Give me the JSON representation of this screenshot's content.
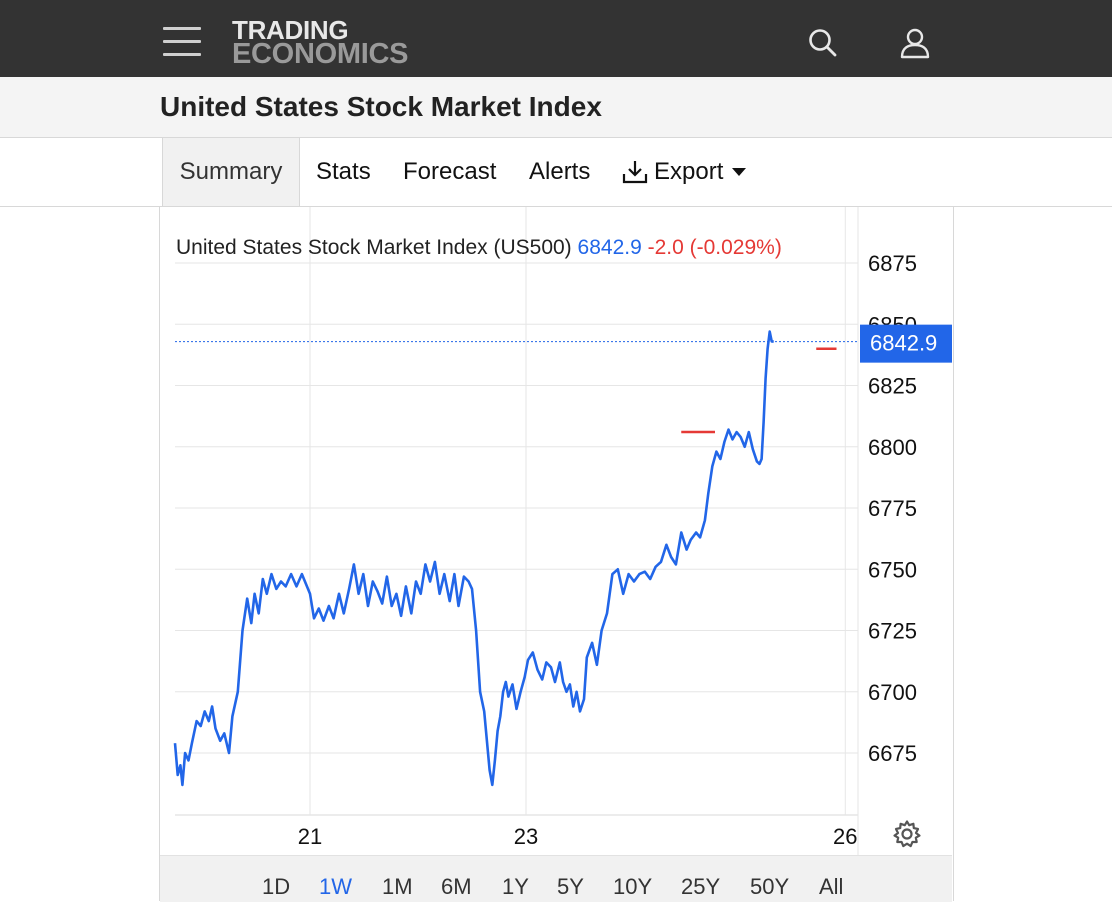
{
  "header": {
    "brand_line1": "TRADING",
    "brand_line2": "ECONOMICS",
    "icons": {
      "menu": "hamburger-menu-icon",
      "search": "search-icon",
      "user": "user-icon"
    }
  },
  "page": {
    "title": "United States Stock Market Index"
  },
  "tabs": [
    {
      "label": "Summary",
      "active": true
    },
    {
      "label": "Stats"
    },
    {
      "label": "Forecast"
    },
    {
      "label": "Alerts"
    },
    {
      "label": "Export",
      "icon": "download-icon",
      "dropdown": true
    }
  ],
  "quote": {
    "name": "United States Stock Market Index (US500)",
    "price": "6842.9",
    "change": "-2.0 (-0.029%)"
  },
  "price_tag": "6842.9",
  "colors": {
    "line": "#2266e8",
    "negative": "#e53935",
    "tag_bg": "#2266e8",
    "topbar": "#333333"
  },
  "chart_data": {
    "type": "line",
    "title": "United States Stock Market Index (US500)",
    "xlabel": "",
    "ylabel": "",
    "x_ticks": [
      {
        "label": "21",
        "t": 0.2
      },
      {
        "label": "23",
        "t": 0.52
      },
      {
        "label": "26",
        "t": 0.993
      }
    ],
    "y_ticks": [
      6675,
      6700,
      6725,
      6750,
      6775,
      6800,
      6825,
      6850,
      6875
    ],
    "ylim": [
      6650,
      6883
    ],
    "grid": true,
    "last_value": 6842.9,
    "markers": [
      {
        "label": "red-level-1",
        "value": 6806,
        "t_start": 0.75,
        "t_end": 0.8
      },
      {
        "label": "red-level-2",
        "value": 6840,
        "t_start": 0.95,
        "t_end": 0.98
      }
    ],
    "series": [
      {
        "points": [
          [
            0.0,
            6679
          ],
          [
            0.004,
            6666
          ],
          [
            0.008,
            6670
          ],
          [
            0.011,
            6662
          ],
          [
            0.015,
            6675
          ],
          [
            0.02,
            6672
          ],
          [
            0.025,
            6679
          ],
          [
            0.032,
            6688
          ],
          [
            0.038,
            6686
          ],
          [
            0.044,
            6692
          ],
          [
            0.05,
            6688
          ],
          [
            0.055,
            6694
          ],
          [
            0.06,
            6685
          ],
          [
            0.067,
            6680
          ],
          [
            0.073,
            6683
          ],
          [
            0.08,
            6675
          ],
          [
            0.085,
            6690
          ],
          [
            0.093,
            6700
          ],
          [
            0.1,
            6725
          ],
          [
            0.107,
            6738
          ],
          [
            0.113,
            6728
          ],
          [
            0.118,
            6740
          ],
          [
            0.124,
            6732
          ],
          [
            0.13,
            6746
          ],
          [
            0.136,
            6740
          ],
          [
            0.143,
            6748
          ],
          [
            0.15,
            6742
          ],
          [
            0.157,
            6745
          ],
          [
            0.164,
            6743
          ],
          [
            0.172,
            6748
          ],
          [
            0.18,
            6743
          ],
          [
            0.188,
            6748
          ],
          [
            0.2,
            6740
          ],
          [
            0.206,
            6730
          ],
          [
            0.213,
            6734
          ],
          [
            0.22,
            6729
          ],
          [
            0.228,
            6735
          ],
          [
            0.235,
            6730
          ],
          [
            0.243,
            6740
          ],
          [
            0.25,
            6732
          ],
          [
            0.258,
            6742
          ],
          [
            0.265,
            6752
          ],
          [
            0.272,
            6740
          ],
          [
            0.279,
            6748
          ],
          [
            0.286,
            6735
          ],
          [
            0.293,
            6745
          ],
          [
            0.3,
            6741
          ],
          [
            0.307,
            6736
          ],
          [
            0.314,
            6747
          ],
          [
            0.321,
            6735
          ],
          [
            0.328,
            6740
          ],
          [
            0.335,
            6731
          ],
          [
            0.342,
            6743
          ],
          [
            0.35,
            6732
          ],
          [
            0.357,
            6745
          ],
          [
            0.364,
            6740
          ],
          [
            0.371,
            6752
          ],
          [
            0.378,
            6745
          ],
          [
            0.385,
            6753
          ],
          [
            0.392,
            6740
          ],
          [
            0.399,
            6748
          ],
          [
            0.407,
            6737
          ],
          [
            0.414,
            6748
          ],
          [
            0.42,
            6735
          ],
          [
            0.428,
            6747
          ],
          [
            0.435,
            6745
          ],
          [
            0.44,
            6742
          ],
          [
            0.446,
            6725
          ],
          [
            0.452,
            6700
          ],
          [
            0.458,
            6692
          ],
          [
            0.462,
            6680
          ],
          [
            0.466,
            6668
          ],
          [
            0.47,
            6662
          ],
          [
            0.474,
            6672
          ],
          [
            0.478,
            6684
          ],
          [
            0.482,
            6690
          ],
          [
            0.486,
            6700
          ],
          [
            0.49,
            6704
          ],
          [
            0.494,
            6698
          ],
          [
            0.5,
            6703
          ],
          [
            0.506,
            6693
          ],
          [
            0.512,
            6700
          ],
          [
            0.518,
            6706
          ],
          [
            0.523,
            6713
          ],
          [
            0.53,
            6716
          ],
          [
            0.537,
            6709
          ],
          [
            0.544,
            6705
          ],
          [
            0.55,
            6712
          ],
          [
            0.557,
            6710
          ],
          [
            0.563,
            6704
          ],
          [
            0.57,
            6712
          ],
          [
            0.575,
            6704
          ],
          [
            0.58,
            6700
          ],
          [
            0.585,
            6703
          ],
          [
            0.59,
            6694
          ],
          [
            0.595,
            6700
          ],
          [
            0.6,
            6692
          ],
          [
            0.606,
            6697
          ],
          [
            0.61,
            6714
          ],
          [
            0.618,
            6720
          ],
          [
            0.625,
            6711
          ],
          [
            0.632,
            6725
          ],
          [
            0.64,
            6732
          ],
          [
            0.648,
            6748
          ],
          [
            0.656,
            6750
          ],
          [
            0.664,
            6740
          ],
          [
            0.672,
            6748
          ],
          [
            0.68,
            6745
          ],
          [
            0.688,
            6748
          ],
          [
            0.696,
            6749
          ],
          [
            0.704,
            6746
          ],
          [
            0.712,
            6751
          ],
          [
            0.72,
            6753
          ],
          [
            0.728,
            6760
          ],
          [
            0.735,
            6755
          ],
          [
            0.742,
            6752
          ],
          [
            0.75,
            6765
          ],
          [
            0.758,
            6758
          ],
          [
            0.764,
            6762
          ],
          [
            0.772,
            6765
          ],
          [
            0.778,
            6763
          ],
          [
            0.785,
            6770
          ],
          [
            0.79,
            6781
          ],
          [
            0.796,
            6792
          ],
          [
            0.802,
            6798
          ],
          [
            0.808,
            6795
          ],
          [
            0.814,
            6802
          ],
          [
            0.82,
            6807
          ],
          [
            0.826,
            6803
          ],
          [
            0.832,
            6806
          ],
          [
            0.838,
            6804
          ],
          [
            0.844,
            6800
          ],
          [
            0.85,
            6806
          ],
          [
            0.856,
            6799
          ],
          [
            0.862,
            6794
          ],
          [
            0.866,
            6793
          ],
          [
            0.869,
            6795
          ],
          [
            0.872,
            6810
          ],
          [
            0.875,
            6828
          ],
          [
            0.878,
            6840
          ],
          [
            0.881,
            6847
          ],
          [
            0.884,
            6843
          ],
          [
            0.887,
            6842.9
          ]
        ]
      }
    ]
  },
  "range_buttons": [
    "1D",
    "1W",
    "1M",
    "6M",
    "1Y",
    "5Y",
    "10Y",
    "25Y",
    "50Y",
    "All"
  ],
  "active_range": "1W",
  "settings_icon": "gear-icon"
}
